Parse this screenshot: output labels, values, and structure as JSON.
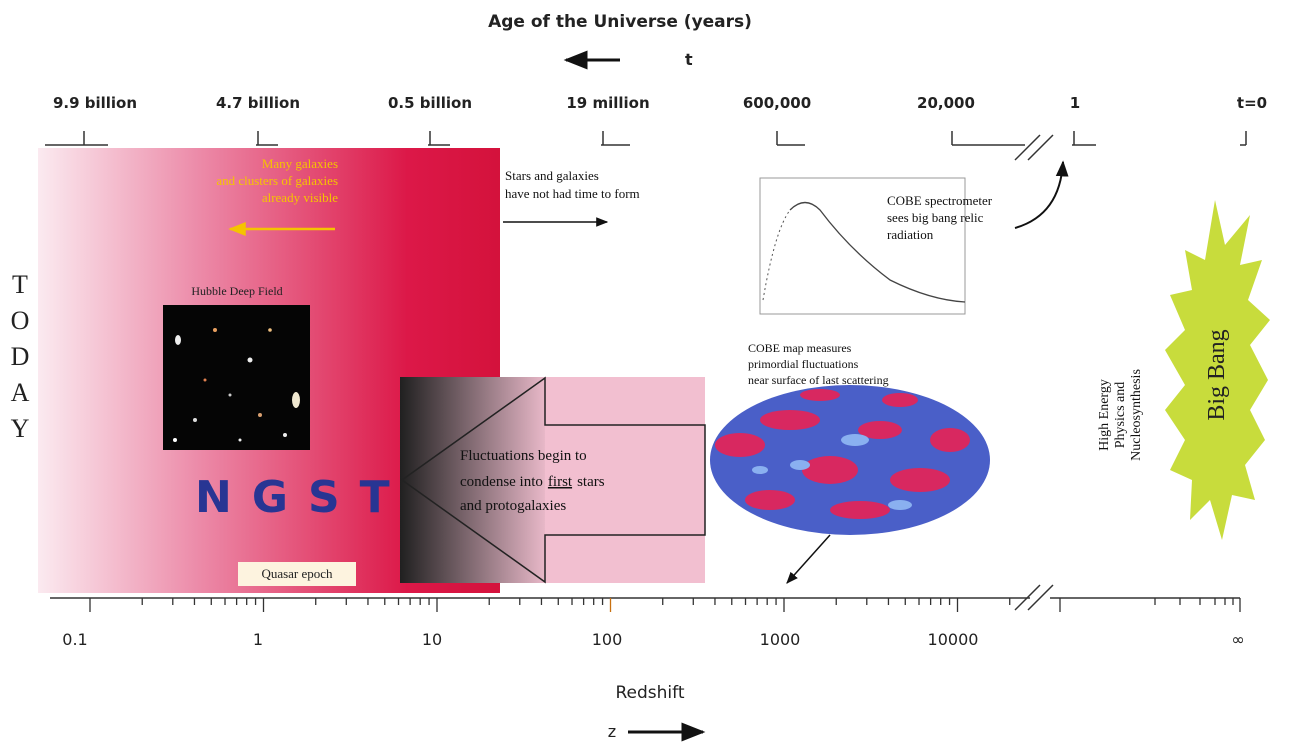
{
  "header": {
    "title": "Age of the Universe (years)",
    "arrow_label": "t"
  },
  "age_labels": [
    "9.9 billion",
    "4.7 billion",
    "0.5 billion",
    "19 million",
    "600,000",
    "20,000",
    "1",
    "t=0"
  ],
  "many_galaxies": [
    "Many galaxies",
    "and clusters of galaxies",
    "already visible"
  ],
  "not_formed": [
    "Stars and galaxies",
    "have not had time to form"
  ],
  "cobe_spectrometer": [
    "COBE spectrometer",
    "sees big bang relic",
    "radiation"
  ],
  "today": [
    "T",
    "O",
    "D",
    "A",
    "Y"
  ],
  "hubble": "Hubble Deep Field",
  "ngst": "NGST",
  "quasar": "Quasar epoch",
  "fluctuations": {
    "line1": "Fluctuations begin to",
    "line2_start": "condense into",
    "line2_underlined": "first",
    "line2_end": "stars",
    "line3": "and protogalaxies"
  },
  "cobe_map": [
    "COBE map measures",
    "primordial fluctuations",
    "near surface of last scattering"
  ],
  "high_energy": [
    "High Energy",
    "Physics and",
    "Nucleosynthesis"
  ],
  "big_bang": "Big Bang",
  "redshift_labels": [
    "0.1",
    "1",
    "10",
    "100",
    "1000",
    "10000",
    "∞"
  ],
  "axis": {
    "title": "Redshift",
    "arrow_label": "z"
  }
}
